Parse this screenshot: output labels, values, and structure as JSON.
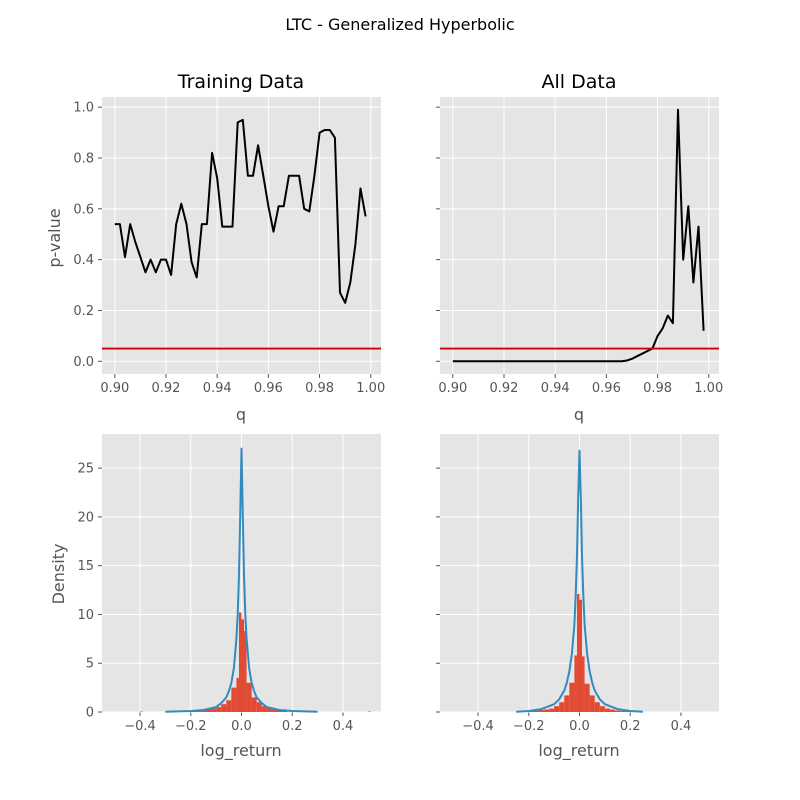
{
  "figure": {
    "suptitle": "LTC - Generalized Hyperbolic"
  },
  "colors": {
    "panel_bg": "#e5e5e5",
    "grid": "#ffffff",
    "line": "#000000",
    "threshold": "#cc0000",
    "hist": "#e24a33",
    "density": "#348abd",
    "tick_text": "#555555"
  },
  "chart_data": [
    {
      "type": "line",
      "title": "Training Data",
      "xlabel": "q",
      "ylabel": "p-value",
      "xlim": [
        0.895,
        1.004
      ],
      "ylim": [
        -0.05,
        1.04
      ],
      "xticks": [
        0.9,
        0.92,
        0.94,
        0.96,
        0.98,
        1.0
      ],
      "xtick_labels": [
        "0.90",
        "0.92",
        "0.94",
        "0.96",
        "0.98",
        "1.00"
      ],
      "yticks": [
        0.0,
        0.2,
        0.4,
        0.6,
        0.8,
        1.0
      ],
      "ytick_labels": [
        "0.0",
        "0.2",
        "0.4",
        "0.6",
        "0.8",
        "1.0"
      ],
      "threshold": 0.05,
      "x": [
        0.9,
        0.902,
        0.904,
        0.906,
        0.908,
        0.91,
        0.912,
        0.914,
        0.916,
        0.918,
        0.92,
        0.922,
        0.924,
        0.926,
        0.928,
        0.93,
        0.932,
        0.934,
        0.936,
        0.938,
        0.94,
        0.942,
        0.944,
        0.946,
        0.948,
        0.95,
        0.952,
        0.954,
        0.956,
        0.958,
        0.96,
        0.962,
        0.964,
        0.966,
        0.968,
        0.97,
        0.972,
        0.974,
        0.976,
        0.978,
        0.98,
        0.982,
        0.984,
        0.986,
        0.988,
        0.99,
        0.992,
        0.994,
        0.996,
        0.998
      ],
      "y": [
        0.54,
        0.54,
        0.41,
        0.54,
        0.47,
        0.41,
        0.35,
        0.4,
        0.35,
        0.4,
        0.4,
        0.34,
        0.54,
        0.62,
        0.54,
        0.39,
        0.33,
        0.54,
        0.54,
        0.82,
        0.72,
        0.53,
        0.53,
        0.53,
        0.94,
        0.95,
        0.73,
        0.73,
        0.85,
        0.73,
        0.61,
        0.51,
        0.61,
        0.61,
        0.73,
        0.73,
        0.73,
        0.6,
        0.59,
        0.73,
        0.9,
        0.91,
        0.91,
        0.88,
        0.27,
        0.23,
        0.31,
        0.46,
        0.68,
        0.57
      ]
    },
    {
      "type": "line",
      "title": "All Data",
      "xlabel": "q",
      "ylabel": "",
      "xlim": [
        0.895,
        1.004
      ],
      "ylim": [
        -0.05,
        1.04
      ],
      "xticks": [
        0.9,
        0.92,
        0.94,
        0.96,
        0.98,
        1.0
      ],
      "xtick_labels": [
        "0.90",
        "0.92",
        "0.94",
        "0.96",
        "0.98",
        "1.00"
      ],
      "yticks": [
        0.0,
        0.2,
        0.4,
        0.6,
        0.8,
        1.0
      ],
      "ytick_labels": [],
      "threshold": 0.05,
      "x": [
        0.9,
        0.91,
        0.92,
        0.93,
        0.94,
        0.95,
        0.96,
        0.966,
        0.968,
        0.97,
        0.972,
        0.974,
        0.976,
        0.978,
        0.98,
        0.982,
        0.984,
        0.986,
        0.988,
        0.99,
        0.992,
        0.994,
        0.996,
        0.998
      ],
      "y": [
        0.0,
        0.0,
        0.0,
        0.0,
        0.0,
        0.0,
        0.0,
        0.0,
        0.003,
        0.01,
        0.02,
        0.03,
        0.04,
        0.05,
        0.1,
        0.13,
        0.18,
        0.15,
        0.99,
        0.4,
        0.61,
        0.31,
        0.53,
        0.12
      ]
    },
    {
      "type": "bar",
      "title": "",
      "xlabel": "log_return",
      "ylabel": "Density",
      "xlim": [
        -0.55,
        0.55
      ],
      "ylim": [
        0,
        28.5
      ],
      "xticks": [
        -0.4,
        -0.2,
        0.0,
        0.2,
        0.4
      ],
      "xtick_labels": [
        "−0.4",
        "−0.2",
        "0.0",
        "0.2",
        "0.4"
      ],
      "yticks": [
        0,
        5,
        10,
        15,
        20,
        25
      ],
      "ytick_labels": [
        "0",
        "5",
        "10",
        "15",
        "20",
        "25"
      ],
      "bin_edges": [
        -0.4,
        -0.39,
        -0.22,
        -0.2,
        -0.18,
        -0.16,
        -0.14,
        -0.12,
        -0.1,
        -0.08,
        -0.06,
        -0.04,
        -0.02,
        -0.01,
        0.0,
        0.01,
        0.02,
        0.04,
        0.06,
        0.08,
        0.1,
        0.12,
        0.14,
        0.16,
        0.18,
        0.28,
        0.29,
        0.5,
        0.51
      ],
      "bin_heights": [
        0.05,
        0,
        0.05,
        0.1,
        0.15,
        0.2,
        0.25,
        0.35,
        0.5,
        0.8,
        1.2,
        2.5,
        3.5,
        10.2,
        9.5,
        8.3,
        3.0,
        1.5,
        1.0,
        0.6,
        0.4,
        0.3,
        0.2,
        0.1,
        0,
        0.05,
        0,
        0.05
      ],
      "density_curve": {
        "x": [
          -0.3,
          -0.2,
          -0.15,
          -0.1,
          -0.08,
          -0.06,
          -0.05,
          -0.04,
          -0.03,
          -0.02,
          -0.015,
          -0.01,
          -0.005,
          0.0,
          0.005,
          0.01,
          0.015,
          0.02,
          0.03,
          0.04,
          0.05,
          0.06,
          0.08,
          0.1,
          0.15,
          0.2,
          0.3
        ],
        "y": [
          0.02,
          0.1,
          0.2,
          0.5,
          0.9,
          1.5,
          2.1,
          3.0,
          4.5,
          7.5,
          10.0,
          14.0,
          20.0,
          27.0,
          20.0,
          14.0,
          10.0,
          7.5,
          4.5,
          3.0,
          2.1,
          1.5,
          0.9,
          0.5,
          0.2,
          0.1,
          0.02
        ]
      }
    },
    {
      "type": "bar",
      "title": "",
      "xlabel": "log_return",
      "ylabel": "",
      "xlim": [
        -0.55,
        0.55
      ],
      "ylim": [
        0,
        28.5
      ],
      "xticks": [
        -0.4,
        -0.2,
        0.0,
        0.2,
        0.4
      ],
      "xtick_labels": [
        "−0.4",
        "−0.2",
        "0.0",
        "0.2",
        "0.4"
      ],
      "yticks": [
        0,
        5,
        10,
        15,
        20,
        25
      ],
      "ytick_labels": [],
      "bin_edges": [
        -0.22,
        -0.2,
        -0.18,
        -0.16,
        -0.14,
        -0.12,
        -0.1,
        -0.08,
        -0.06,
        -0.04,
        -0.02,
        -0.01,
        0.0,
        0.01,
        0.02,
        0.04,
        0.06,
        0.08,
        0.1,
        0.12,
        0.14,
        0.16,
        0.18,
        0.2,
        0.22
      ],
      "bin_heights": [
        0.05,
        0.1,
        0.15,
        0.2,
        0.25,
        0.35,
        0.6,
        1.0,
        1.7,
        3.0,
        5.8,
        12.1,
        11.5,
        5.7,
        2.9,
        1.7,
        1.0,
        0.6,
        0.35,
        0.25,
        0.15,
        0.1,
        0.08,
        0.05
      ],
      "density_curve": {
        "x": [
          -0.25,
          -0.2,
          -0.15,
          -0.1,
          -0.08,
          -0.06,
          -0.05,
          -0.04,
          -0.03,
          -0.02,
          -0.015,
          -0.01,
          -0.005,
          0.0,
          0.005,
          0.01,
          0.015,
          0.02,
          0.03,
          0.04,
          0.05,
          0.06,
          0.08,
          0.1,
          0.15,
          0.2,
          0.25
        ],
        "y": [
          0.02,
          0.1,
          0.3,
          0.8,
          1.3,
          2.2,
          3.0,
          4.2,
          6.0,
          9.0,
          12.0,
          16.0,
          22.0,
          26.8,
          22.0,
          16.0,
          12.0,
          9.0,
          6.0,
          4.2,
          3.0,
          2.2,
          1.3,
          0.8,
          0.3,
          0.1,
          0.02
        ]
      }
    }
  ]
}
